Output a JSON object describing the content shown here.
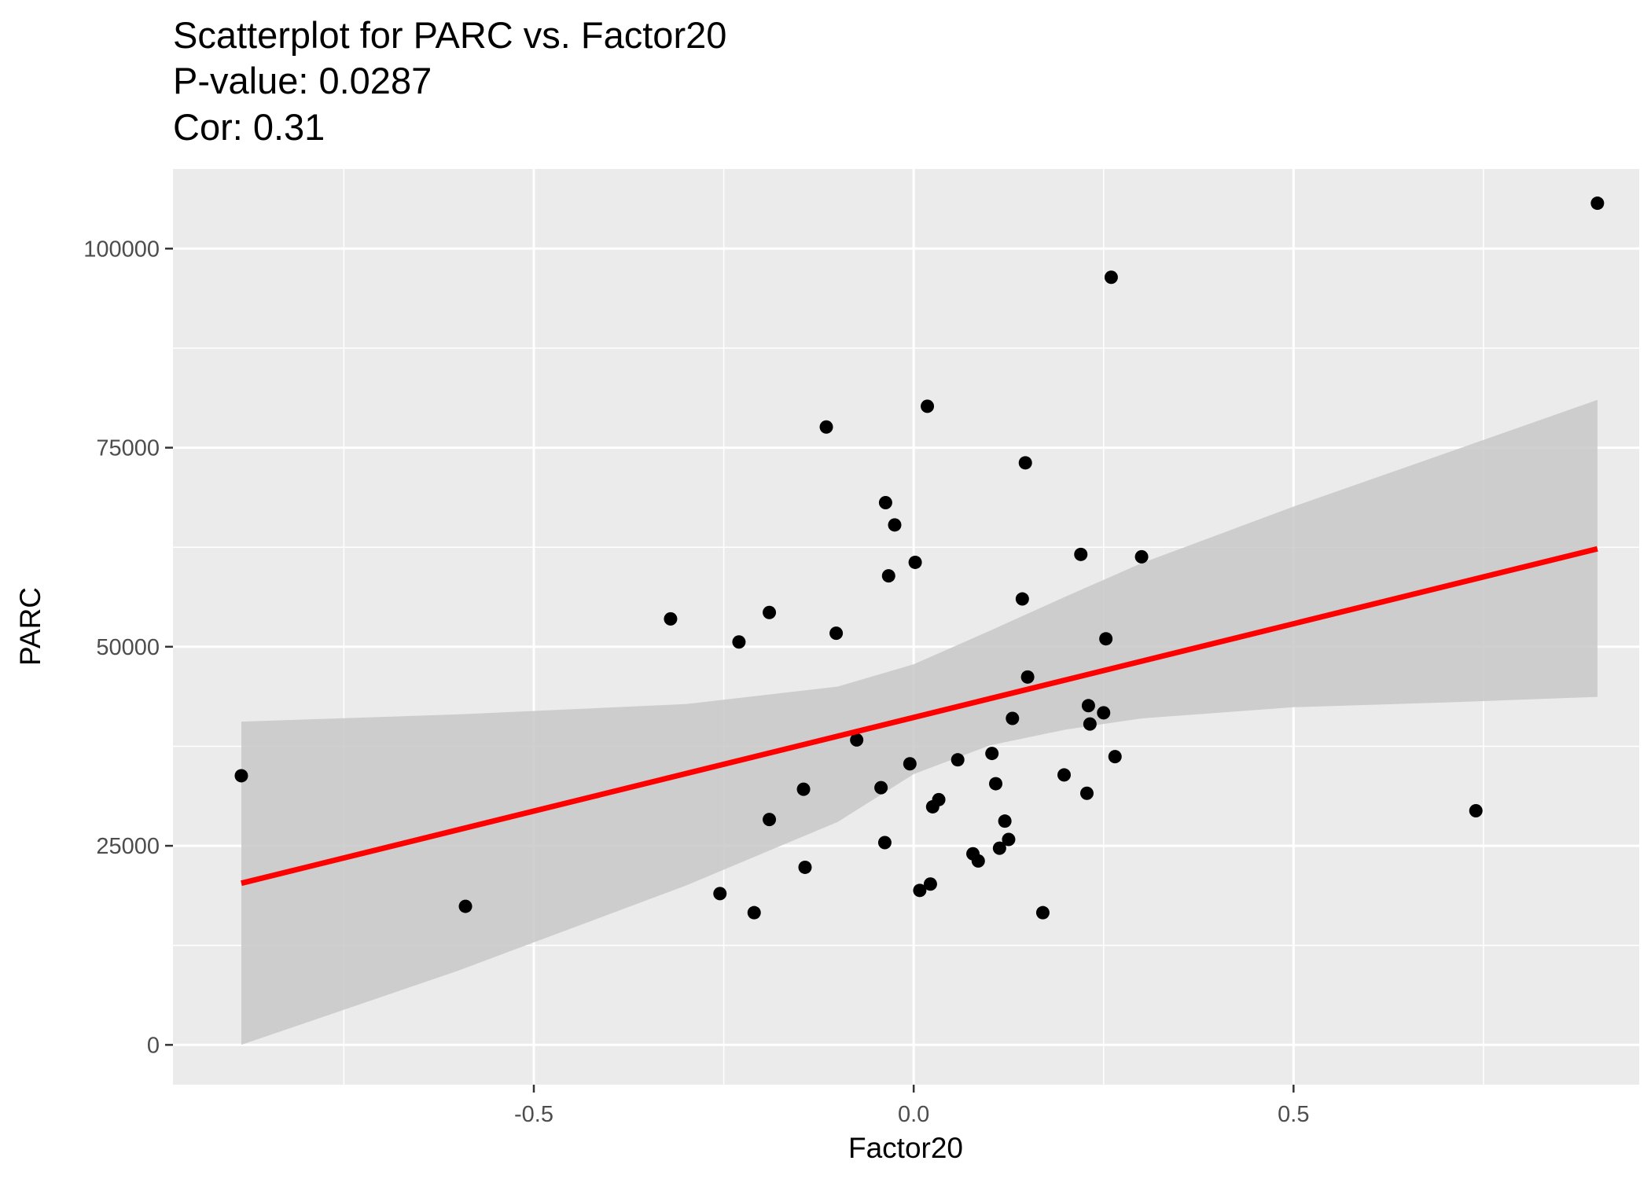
{
  "chart_data": {
    "type": "scatter",
    "title_lines": [
      "Scatterplot for PARC vs. Factor20",
      "P-value: 0.0287",
      "Cor: 0.31"
    ],
    "xlabel": "Factor20",
    "ylabel": "PARC",
    "xlim": [
      -0.975,
      0.955
    ],
    "ylim": [
      -5000,
      110000
    ],
    "x_ticks": [
      -0.5,
      0.0,
      0.5
    ],
    "x_tick_labels": [
      "-0.5",
      "0.0",
      "0.5"
    ],
    "x_minor": [
      -0.75,
      -0.25,
      0.25,
      0.75
    ],
    "y_ticks": [
      0,
      25000,
      50000,
      75000,
      100000
    ],
    "y_tick_labels": [
      "0",
      "25000",
      "50000",
      "75000",
      "100000"
    ],
    "y_minor": [
      12500,
      37500,
      62500,
      87500
    ],
    "grid": true,
    "colors": {
      "panel": "#ebebeb",
      "grid": "#ffffff",
      "points": "#000000",
      "fit_line": "#ff0000",
      "band": "#c8c8c8"
    },
    "points": [
      {
        "x": -0.885,
        "y": 33800
      },
      {
        "x": -0.59,
        "y": 17400
      },
      {
        "x": -0.32,
        "y": 53500
      },
      {
        "x": -0.255,
        "y": 19000
      },
      {
        "x": -0.23,
        "y": 50600
      },
      {
        "x": -0.21,
        "y": 16600
      },
      {
        "x": -0.19,
        "y": 28300
      },
      {
        "x": -0.19,
        "y": 54300
      },
      {
        "x": -0.145,
        "y": 32100
      },
      {
        "x": -0.143,
        "y": 22300
      },
      {
        "x": -0.115,
        "y": 77600
      },
      {
        "x": -0.102,
        "y": 51700
      },
      {
        "x": -0.075,
        "y": 38300
      },
      {
        "x": -0.043,
        "y": 32300
      },
      {
        "x": -0.038,
        "y": 25400
      },
      {
        "x": -0.037,
        "y": 68100
      },
      {
        "x": -0.033,
        "y": 58900
      },
      {
        "x": -0.025,
        "y": 65300
      },
      {
        "x": -0.005,
        "y": 35300
      },
      {
        "x": 0.002,
        "y": 60600
      },
      {
        "x": 0.008,
        "y": 19400
      },
      {
        "x": 0.018,
        "y": 80200
      },
      {
        "x": 0.022,
        "y": 20200
      },
      {
        "x": 0.025,
        "y": 29900
      },
      {
        "x": 0.033,
        "y": 30800
      },
      {
        "x": 0.058,
        "y": 35800
      },
      {
        "x": 0.078,
        "y": 24000
      },
      {
        "x": 0.085,
        "y": 23100
      },
      {
        "x": 0.103,
        "y": 36600
      },
      {
        "x": 0.108,
        "y": 32800
      },
      {
        "x": 0.113,
        "y": 24700
      },
      {
        "x": 0.12,
        "y": 28100
      },
      {
        "x": 0.125,
        "y": 25800
      },
      {
        "x": 0.13,
        "y": 41000
      },
      {
        "x": 0.143,
        "y": 56000
      },
      {
        "x": 0.147,
        "y": 73100
      },
      {
        "x": 0.15,
        "y": 46200
      },
      {
        "x": 0.17,
        "y": 16600
      },
      {
        "x": 0.198,
        "y": 33900
      },
      {
        "x": 0.22,
        "y": 61600
      },
      {
        "x": 0.228,
        "y": 31600
      },
      {
        "x": 0.23,
        "y": 42600
      },
      {
        "x": 0.232,
        "y": 40300
      },
      {
        "x": 0.25,
        "y": 41700
      },
      {
        "x": 0.253,
        "y": 51000
      },
      {
        "x": 0.26,
        "y": 96400
      },
      {
        "x": 0.265,
        "y": 36200
      },
      {
        "x": 0.3,
        "y": 61300
      },
      {
        "x": 0.74,
        "y": 29400
      },
      {
        "x": 0.9,
        "y": 105700
      }
    ],
    "fit_line": {
      "x": [
        -0.885,
        0.9
      ],
      "y": [
        20300,
        62300
      ]
    },
    "confidence_band": {
      "x": [
        -0.885,
        -0.6,
        -0.3,
        -0.1,
        0.0,
        0.1,
        0.2,
        0.3,
        0.5,
        0.7,
        0.9
      ],
      "upper": [
        40600,
        41500,
        42800,
        45000,
        47800,
        52000,
        56300,
        60500,
        67600,
        74300,
        81000
      ],
      "lower": [
        0,
        9300,
        20000,
        28000,
        34000,
        37600,
        39600,
        41000,
        42400,
        43000,
        43700
      ]
    }
  }
}
